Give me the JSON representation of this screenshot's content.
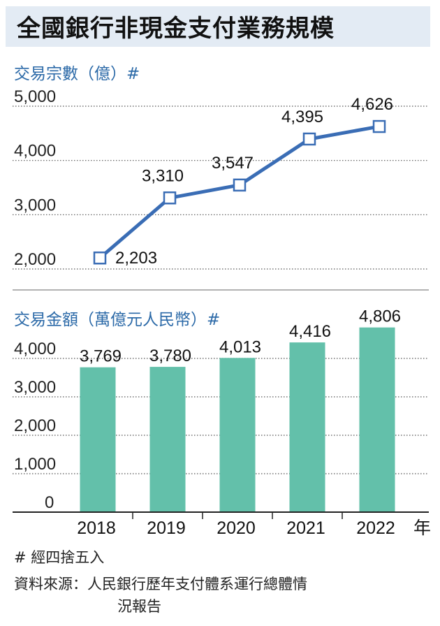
{
  "title": "全國銀行非現金支付業務規模",
  "chart_data": [
    {
      "type": "line",
      "title": "交易宗數（億）#",
      "categories": [
        "2018",
        "2019",
        "2020",
        "2021",
        "2022"
      ],
      "values": [
        2203,
        3310,
        3547,
        4395,
        4626
      ],
      "value_labels": [
        "2,203",
        "3,310",
        "3,547",
        "4,395",
        "4,626"
      ],
      "ylim": [
        2000,
        5000
      ],
      "yticks": [
        "2,000",
        "3,000",
        "4,000",
        "5,000"
      ],
      "line_color": "#3a6db5",
      "marker": "hollow-square"
    },
    {
      "type": "bar",
      "title": "交易金額（萬億元人民幣）#",
      "categories": [
        "2018",
        "2019",
        "2020",
        "2021",
        "2022"
      ],
      "values": [
        3769,
        3780,
        4013,
        4416,
        4806
      ],
      "value_labels": [
        "3,769",
        "3,780",
        "4,013",
        "4,416",
        "4,806"
      ],
      "ylim": [
        0,
        5000
      ],
      "yticks": [
        "0",
        "1,000",
        "2,000",
        "3,000",
        "4,000"
      ],
      "xlabel_suffix": "年",
      "bar_color": "#63c0aa"
    }
  ],
  "footnotes": {
    "rounding": "# 經四捨五入",
    "source_line1": "資料來源：人民銀行歷年支付體系運行總體情",
    "source_line2": "況報告"
  }
}
